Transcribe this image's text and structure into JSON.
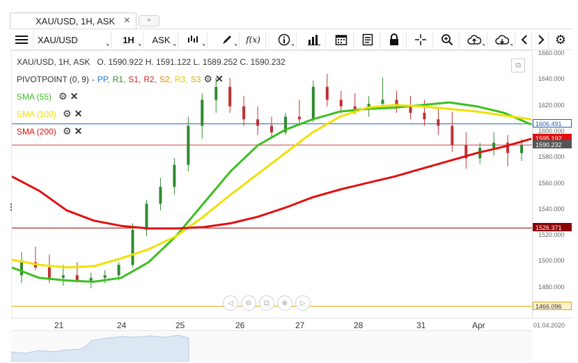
{
  "tab": {
    "title": "XAU/USD, 1H, ASK",
    "close": "×",
    "add": "+"
  },
  "toolbar": {
    "symbol": "XAU/USD",
    "interval": "1H",
    "side": "ASK",
    "fx_label": "f(x)"
  },
  "info": {
    "header": "XAU/USD, 1H, ASK",
    "open_label": "O.",
    "open": "1590.922",
    "high_label": "H.",
    "high": "1591.122",
    "low_label": "L.",
    "low": "1589.252",
    "close_label": "C.",
    "close": "1590.232"
  },
  "pivot": {
    "name": "PIVOTPOINT (0, 9)",
    "sep": "-",
    "pp": "PP,",
    "r1": "R1,",
    "s1": "S1,",
    "r2": "R2,",
    "s2": "S2,",
    "r3": "R3,",
    "s3": "S3",
    "colors": {
      "pp": "#1e73e8",
      "r1": "#2a8a2a",
      "s1": "#cc2222",
      "r2": "#cc2222",
      "s2": "#e08a00",
      "r3": "#e0c800",
      "s3": "#e0a800"
    }
  },
  "indicators": [
    {
      "label": "SMA (55)",
      "color": "#3cbf20"
    },
    {
      "label": "SMA (100)",
      "color": "#f0e000"
    },
    {
      "label": "SMA (200)",
      "color": "#e01010"
    }
  ],
  "yaxis": {
    "ticks": [
      "1660.000",
      "1640.000",
      "1620.000",
      "1600.000",
      "1580.000",
      "1560.000",
      "1540.000",
      "1520.000",
      "1500.000",
      "1480.000"
    ],
    "badges": [
      {
        "text": "1606.491",
        "bg": "#ffffff",
        "fg": "#1e5eb8",
        "border": "#1e5eb8"
      },
      {
        "text": "1595.192",
        "bg": "#e01010",
        "fg": "#ffffff",
        "border": "#e01010"
      },
      {
        "text": "1590.232",
        "bg": "#555555",
        "fg": "#ffffff",
        "border": "#555555"
      },
      {
        "text": "1526.371",
        "bg": "#8b0000",
        "fg": "#ffffff",
        "border": "#8b0000"
      },
      {
        "text": "1466.096",
        "bg": "#fff3cc",
        "fg": "#333333",
        "border": "#e0a800"
      }
    ]
  },
  "xaxis": {
    "ticks": [
      "21",
      "24",
      "25",
      "26",
      "27",
      "28",
      "31",
      "Apr"
    ],
    "date": "01.04.2020"
  },
  "chart_data": {
    "type": "line",
    "ylim": [
      1460,
      1660
    ],
    "levels": [
      {
        "value": 1606.491,
        "color": "#1e5eb8"
      },
      {
        "value": 1590.232,
        "color": "#c04040"
      },
      {
        "value": 1526.371,
        "color": "#8b0000"
      },
      {
        "value": 1466.096,
        "color": "#e0a800"
      }
    ],
    "series": [
      {
        "name": "SMA (55)",
        "color": "#3cbf20",
        "values": [
          1496,
          1488,
          1486,
          1485,
          1488,
          1500,
          1520,
          1545,
          1570,
          1590,
          1602,
          1610,
          1616,
          1618,
          1619,
          1621,
          1623,
          1620,
          1615,
          1606
        ]
      },
      {
        "name": "SMA (100)",
        "color": "#f0e000",
        "values": [
          1502,
          1498,
          1496,
          1497,
          1503,
          1510,
          1520,
          1535,
          1552,
          1568,
          1584,
          1600,
          1612,
          1619,
          1621,
          1620,
          1618,
          1616,
          1613,
          1610
        ]
      },
      {
        "name": "SMA (200)",
        "color": "#e01010",
        "values": [
          1566,
          1555,
          1540,
          1532,
          1528,
          1526,
          1526,
          1527,
          1530,
          1535,
          1542,
          1550,
          1556,
          1561,
          1566,
          1572,
          1578,
          1584,
          1589,
          1595
        ]
      }
    ],
    "candles": [
      [
        1490,
        1508,
        1484,
        1500
      ],
      [
        1500,
        1512,
        1494,
        1496
      ],
      [
        1496,
        1506,
        1484,
        1488
      ],
      [
        1488,
        1498,
        1482,
        1490
      ],
      [
        1490,
        1500,
        1484,
        1486
      ],
      [
        1486,
        1492,
        1480,
        1488
      ],
      [
        1488,
        1494,
        1484,
        1490
      ],
      [
        1490,
        1500,
        1486,
        1498
      ],
      [
        1498,
        1530,
        1496,
        1525
      ],
      [
        1525,
        1548,
        1520,
        1545
      ],
      [
        1545,
        1565,
        1540,
        1558
      ],
      [
        1558,
        1580,
        1552,
        1575
      ],
      [
        1575,
        1612,
        1570,
        1605
      ],
      [
        1605,
        1630,
        1595,
        1625
      ],
      [
        1625,
        1642,
        1615,
        1635
      ],
      [
        1635,
        1642,
        1615,
        1620
      ],
      [
        1620,
        1628,
        1605,
        1610
      ],
      [
        1610,
        1620,
        1598,
        1605
      ],
      [
        1605,
        1612,
        1595,
        1600
      ],
      [
        1600,
        1615,
        1598,
        1612
      ],
      [
        1612,
        1625,
        1605,
        1610
      ],
      [
        1610,
        1640,
        1608,
        1635
      ],
      [
        1635,
        1645,
        1620,
        1625
      ],
      [
        1625,
        1632,
        1615,
        1620
      ],
      [
        1620,
        1630,
        1614,
        1618
      ],
      [
        1618,
        1628,
        1612,
        1622
      ],
      [
        1622,
        1642,
        1618,
        1625
      ],
      [
        1625,
        1632,
        1615,
        1620
      ],
      [
        1620,
        1628,
        1610,
        1615
      ],
      [
        1615,
        1625,
        1605,
        1610
      ],
      [
        1610,
        1618,
        1598,
        1605
      ],
      [
        1605,
        1616,
        1585,
        1590
      ],
      [
        1590,
        1600,
        1572,
        1580
      ],
      [
        1580,
        1592,
        1576,
        1588
      ],
      [
        1588,
        1600,
        1582,
        1592
      ],
      [
        1592,
        1598,
        1574,
        1584
      ],
      [
        1584,
        1595,
        1578,
        1590
      ]
    ]
  }
}
